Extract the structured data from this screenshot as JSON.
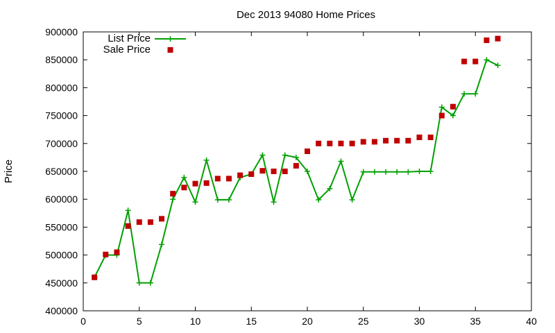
{
  "chart_data": {
    "type": "line",
    "title": "Dec 2013 94080 Home Prices",
    "xlabel": "",
    "ylabel": "Price",
    "xlim": [
      0,
      40
    ],
    "ylim": [
      400000,
      900000
    ],
    "xticks": [
      0,
      5,
      10,
      15,
      20,
      25,
      30,
      35,
      40
    ],
    "yticks": [
      400000,
      450000,
      500000,
      550000,
      600000,
      650000,
      700000,
      750000,
      800000,
      850000,
      900000
    ],
    "grid": false,
    "legend_position": "top-left",
    "series": [
      {
        "name": "List Price",
        "style": "line-plus",
        "color": "#00a000",
        "x": [
          1,
          2,
          3,
          4,
          5,
          6,
          7,
          8,
          9,
          10,
          11,
          12,
          13,
          14,
          15,
          16,
          17,
          18,
          19,
          20,
          21,
          22,
          23,
          24,
          25,
          26,
          27,
          28,
          29,
          30,
          31,
          32,
          33,
          34,
          35,
          36,
          37
        ],
        "y": [
          460000,
          500000,
          500000,
          580000,
          450000,
          450000,
          519000,
          600000,
          639000,
          595000,
          670000,
          599000,
          599000,
          639000,
          645000,
          679000,
          595000,
          679000,
          675000,
          650000,
          599000,
          619000,
          668000,
          599000,
          649000,
          649000,
          649000,
          649000,
          649000,
          650000,
          650000,
          765000,
          750000,
          789000,
          789000,
          850000,
          840000
        ]
      },
      {
        "name": "Sale Price",
        "style": "square",
        "color": "#c00000",
        "x": [
          1,
          2,
          3,
          4,
          5,
          6,
          7,
          8,
          9,
          10,
          11,
          12,
          13,
          14,
          15,
          16,
          17,
          18,
          19,
          20,
          21,
          22,
          23,
          24,
          25,
          26,
          27,
          28,
          29,
          30,
          31,
          32,
          33,
          34,
          35,
          36,
          37
        ],
        "y": [
          460000,
          501000,
          505000,
          552000,
          559000,
          559000,
          565000,
          610000,
          621000,
          628000,
          629000,
          637000,
          637000,
          643000,
          645000,
          651000,
          650000,
          650000,
          660000,
          686000,
          700000,
          700000,
          700000,
          700000,
          703000,
          703000,
          705000,
          705000,
          705000,
          711000,
          711000,
          750000,
          766000,
          847000,
          847000,
          885000,
          888000
        ]
      }
    ]
  }
}
